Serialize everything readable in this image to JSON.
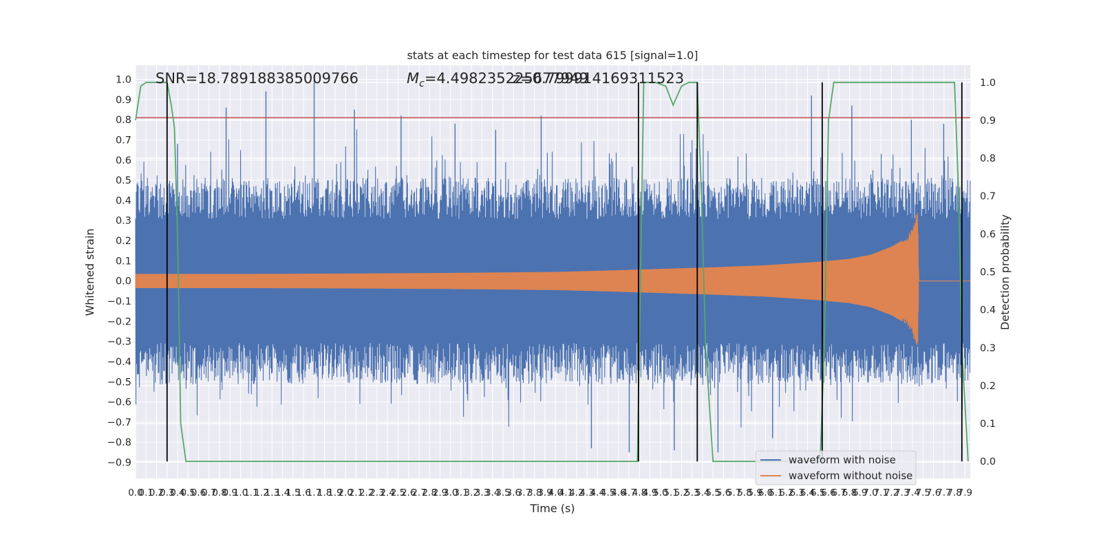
{
  "chart_data": {
    "type": "line",
    "title": "stats at each timestep for test data 615 [signal=1.0]",
    "xlabel": "Time (s)",
    "ylabel": "Whitened strain",
    "ylabel_right": "Detection probability",
    "xlim": [
      0.0,
      7.95
    ],
    "ylim": [
      -0.98,
      1.07
    ],
    "ylim_right": [
      -0.045,
      1.045
    ],
    "x_ticks": [
      "0.0",
      "0.1",
      "0.2",
      "0.3",
      "0.4",
      "0.5",
      "0.6",
      "0.7",
      "0.8",
      "0.9",
      "1.0",
      "1.1",
      "1.2",
      "1.3",
      "1.4",
      "1.5",
      "1.6",
      "1.7",
      "1.8",
      "1.9",
      "2.0",
      "2.1",
      "2.2",
      "2.3",
      "2.4",
      "2.5",
      "2.6",
      "2.7",
      "2.8",
      "2.9",
      "3.0",
      "3.1",
      "3.2",
      "3.3",
      "3.4",
      "3.5",
      "3.6",
      "3.7",
      "3.8",
      "3.9",
      "4.0",
      "4.1",
      "4.2",
      "4.3",
      "4.4",
      "4.5",
      "4.6",
      "4.7",
      "4.8",
      "4.9",
      "5.0",
      "5.1",
      "5.2",
      "5.3",
      "5.4",
      "5.5",
      "5.6",
      "5.7",
      "5.8",
      "5.9",
      "6.0",
      "6.1",
      "6.2",
      "6.3",
      "6.4",
      "6.5",
      "6.6",
      "6.7",
      "6.8",
      "6.9",
      "7.0",
      "7.1",
      "7.2",
      "7.3",
      "7.4",
      "7.5",
      "7.6",
      "7.7",
      "7.8",
      "7.9"
    ],
    "y_ticks": [
      "−0.9",
      "−0.8",
      "−0.7",
      "−0.6",
      "−0.5",
      "−0.4",
      "−0.3",
      "−0.2",
      "−0.1",
      "0.0",
      "0.1",
      "0.2",
      "0.3",
      "0.4",
      "0.5",
      "0.6",
      "0.7",
      "0.8",
      "0.9",
      "1.0"
    ],
    "y_ticks_right": [
      "0.0",
      "0.1",
      "0.2",
      "0.3",
      "0.4",
      "0.5",
      "0.6",
      "0.7",
      "0.8",
      "0.9",
      "1.0"
    ],
    "annotations": {
      "snr": "SNR=18.789188385009766",
      "mc": "M",
      "mc_sub": "c",
      "mc_value": "=4.498235225677949",
      "overlap": "z=0.799914169311523"
    },
    "threshold": {
      "value": 0.81,
      "color": "#c44e52"
    },
    "vertical_markers": [
      0.3,
      4.79,
      5.35,
      6.54,
      7.87
    ],
    "series": [
      {
        "name": "waveform with noise",
        "color": "#4c72b0",
        "noise_envelope": 0.41,
        "peak_values": [
          0.68,
          0.86,
          0.94,
          1.0,
          0.85,
          0.82,
          0.78,
          0.75,
          0.82,
          -0.83,
          -0.85,
          -0.84,
          -0.85,
          -0.78,
          0.92,
          0.87,
          0.8,
          0.78
        ]
      },
      {
        "name": "waveform without noise",
        "color": "#dd8452",
        "envelope": {
          "t": [
            0.0,
            1.0,
            2.0,
            3.0,
            4.0,
            4.5,
            5.0,
            5.5,
            6.0,
            6.5,
            6.8,
            7.0,
            7.2,
            7.3,
            7.35,
            7.4,
            7.43,
            7.45,
            7.46,
            7.95
          ],
          "amp": [
            0.035,
            0.035,
            0.037,
            0.04,
            0.045,
            0.052,
            0.06,
            0.068,
            0.078,
            0.095,
            0.11,
            0.13,
            0.17,
            0.2,
            0.22,
            0.27,
            0.33,
            0.36,
            0.0,
            0.0
          ]
        }
      },
      {
        "name": "detection probability",
        "color": "#55a868",
        "axis": "right",
        "x": [
          0.0,
          0.05,
          0.1,
          0.18,
          0.3,
          0.34,
          0.37,
          0.4,
          0.43,
          0.48,
          0.5,
          4.72,
          4.78,
          4.84,
          4.95,
          5.05,
          5.12,
          5.2,
          5.27,
          5.35,
          5.39,
          5.43,
          5.5,
          6.52,
          6.56,
          6.6,
          6.65,
          7.72,
          7.8,
          7.84,
          7.87,
          7.93
        ],
        "y": [
          0.9,
          0.99,
          1.0,
          1.0,
          1.0,
          0.94,
          0.88,
          0.6,
          0.1,
          0.0,
          0.0,
          0.0,
          0.0,
          1.0,
          1.0,
          0.99,
          0.94,
          0.99,
          1.0,
          1.0,
          0.7,
          0.3,
          0.0,
          0.0,
          0.3,
          0.9,
          1.0,
          1.0,
          1.0,
          0.7,
          0.3,
          0.0
        ]
      }
    ],
    "legend": [
      "waveform with noise",
      "waveform without noise"
    ],
    "legend_position": "lower-right",
    "grid": true
  }
}
